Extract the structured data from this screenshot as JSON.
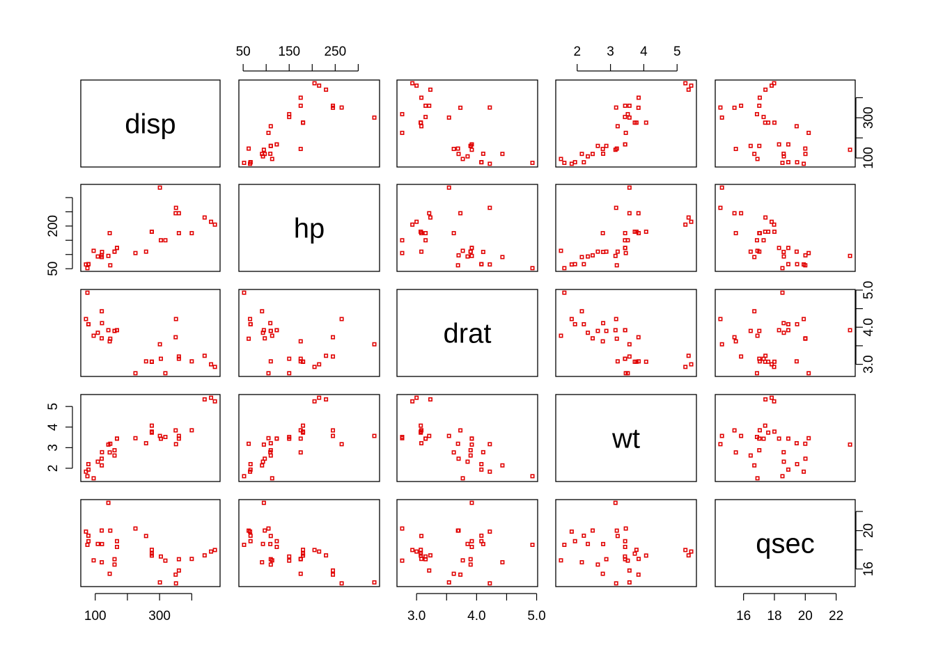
{
  "chart_data": {
    "type": "scatter",
    "subtype": "scatterplot-matrix",
    "point_color": "#e00000",
    "point_shape": "open-square",
    "variables": [
      "disp",
      "hp",
      "drat",
      "wt",
      "qsec"
    ],
    "ranges": {
      "disp": [
        71.1,
        472
      ],
      "hp": [
        52,
        335
      ],
      "drat": [
        2.76,
        4.93
      ],
      "wt": [
        1.513,
        5.424
      ],
      "qsec": [
        14.5,
        22.9
      ]
    },
    "ticks": {
      "disp": {
        "values": [
          100,
          200,
          300,
          400
        ],
        "labels": [
          "100",
          "",
          "300",
          ""
        ]
      },
      "hp": {
        "values": [
          50,
          100,
          150,
          200,
          250,
          300
        ],
        "labels": [
          "50",
          "",
          "150",
          "",
          "250",
          ""
        ]
      },
      "drat": {
        "values": [
          3.0,
          3.5,
          4.0,
          4.5,
          5.0
        ],
        "labels": [
          "3.0",
          "",
          "4.0",
          "",
          "5.0"
        ]
      },
      "wt": {
        "values": [
          2,
          3,
          4,
          5
        ],
        "labels": [
          "2",
          "3",
          "4",
          "5"
        ]
      },
      "qsec": {
        "values": [
          16,
          18,
          20,
          22
        ],
        "labels": [
          "16",
          "18",
          "20",
          "22"
        ]
      }
    },
    "ticks_y": {
      "disp": {
        "values": [
          100,
          200,
          300,
          400
        ],
        "labels": [
          "100",
          "",
          "300",
          ""
        ]
      },
      "hp": {
        "values": [
          50,
          100,
          150,
          200,
          250,
          300
        ],
        "labels": [
          "50",
          "",
          "",
          "200",
          "",
          ""
        ]
      },
      "drat": {
        "values": [
          3.0,
          3.5,
          4.0,
          4.5,
          5.0
        ],
        "labels": [
          "3.0",
          "",
          "4.0",
          "",
          "5.0"
        ]
      },
      "wt": {
        "values": [
          2,
          3,
          4,
          5
        ],
        "labels": [
          "2",
          "3",
          "4",
          "5"
        ]
      },
      "qsec": {
        "values": [
          16,
          18,
          20,
          22
        ],
        "labels": [
          "16",
          "",
          "20",
          ""
        ]
      }
    },
    "data": {
      "disp": [
        160,
        160,
        108,
        258,
        360,
        225,
        360,
        146.7,
        140.8,
        167.6,
        167.6,
        275.8,
        275.8,
        275.8,
        472,
        460,
        440,
        78.7,
        75.7,
        71.1,
        120.1,
        318,
        304,
        350,
        400,
        79,
        120.3,
        95.1,
        351,
        145,
        301,
        121
      ],
      "hp": [
        110,
        110,
        93,
        110,
        175,
        105,
        245,
        62,
        95,
        123,
        123,
        180,
        180,
        180,
        205,
        215,
        230,
        66,
        52,
        65,
        97,
        150,
        150,
        245,
        175,
        66,
        91,
        113,
        264,
        175,
        335,
        109
      ],
      "drat": [
        3.9,
        3.9,
        3.85,
        3.08,
        3.15,
        2.76,
        3.21,
        3.69,
        3.92,
        3.92,
        3.92,
        3.07,
        3.07,
        3.07,
        2.93,
        3.0,
        3.23,
        4.08,
        4.93,
        4.22,
        3.7,
        2.76,
        3.15,
        3.73,
        3.08,
        4.08,
        4.43,
        3.77,
        4.22,
        3.62,
        3.54,
        4.11
      ],
      "wt": [
        2.62,
        2.875,
        2.32,
        3.215,
        3.44,
        3.46,
        3.57,
        3.19,
        3.15,
        3.44,
        3.44,
        4.07,
        3.73,
        3.78,
        5.25,
        5.424,
        5.345,
        2.2,
        1.615,
        1.835,
        2.465,
        3.52,
        3.435,
        3.84,
        3.845,
        1.935,
        2.14,
        1.513,
        3.17,
        2.77,
        3.57,
        2.78
      ],
      "qsec": [
        16.46,
        17.02,
        18.61,
        19.44,
        17.02,
        20.22,
        15.84,
        20.0,
        22.9,
        18.3,
        18.9,
        17.4,
        17.6,
        18.0,
        17.98,
        17.82,
        17.42,
        19.47,
        18.52,
        19.9,
        20.01,
        16.87,
        17.3,
        15.41,
        17.05,
        18.9,
        16.7,
        16.9,
        14.5,
        15.5,
        14.6,
        18.6
      ]
    }
  }
}
